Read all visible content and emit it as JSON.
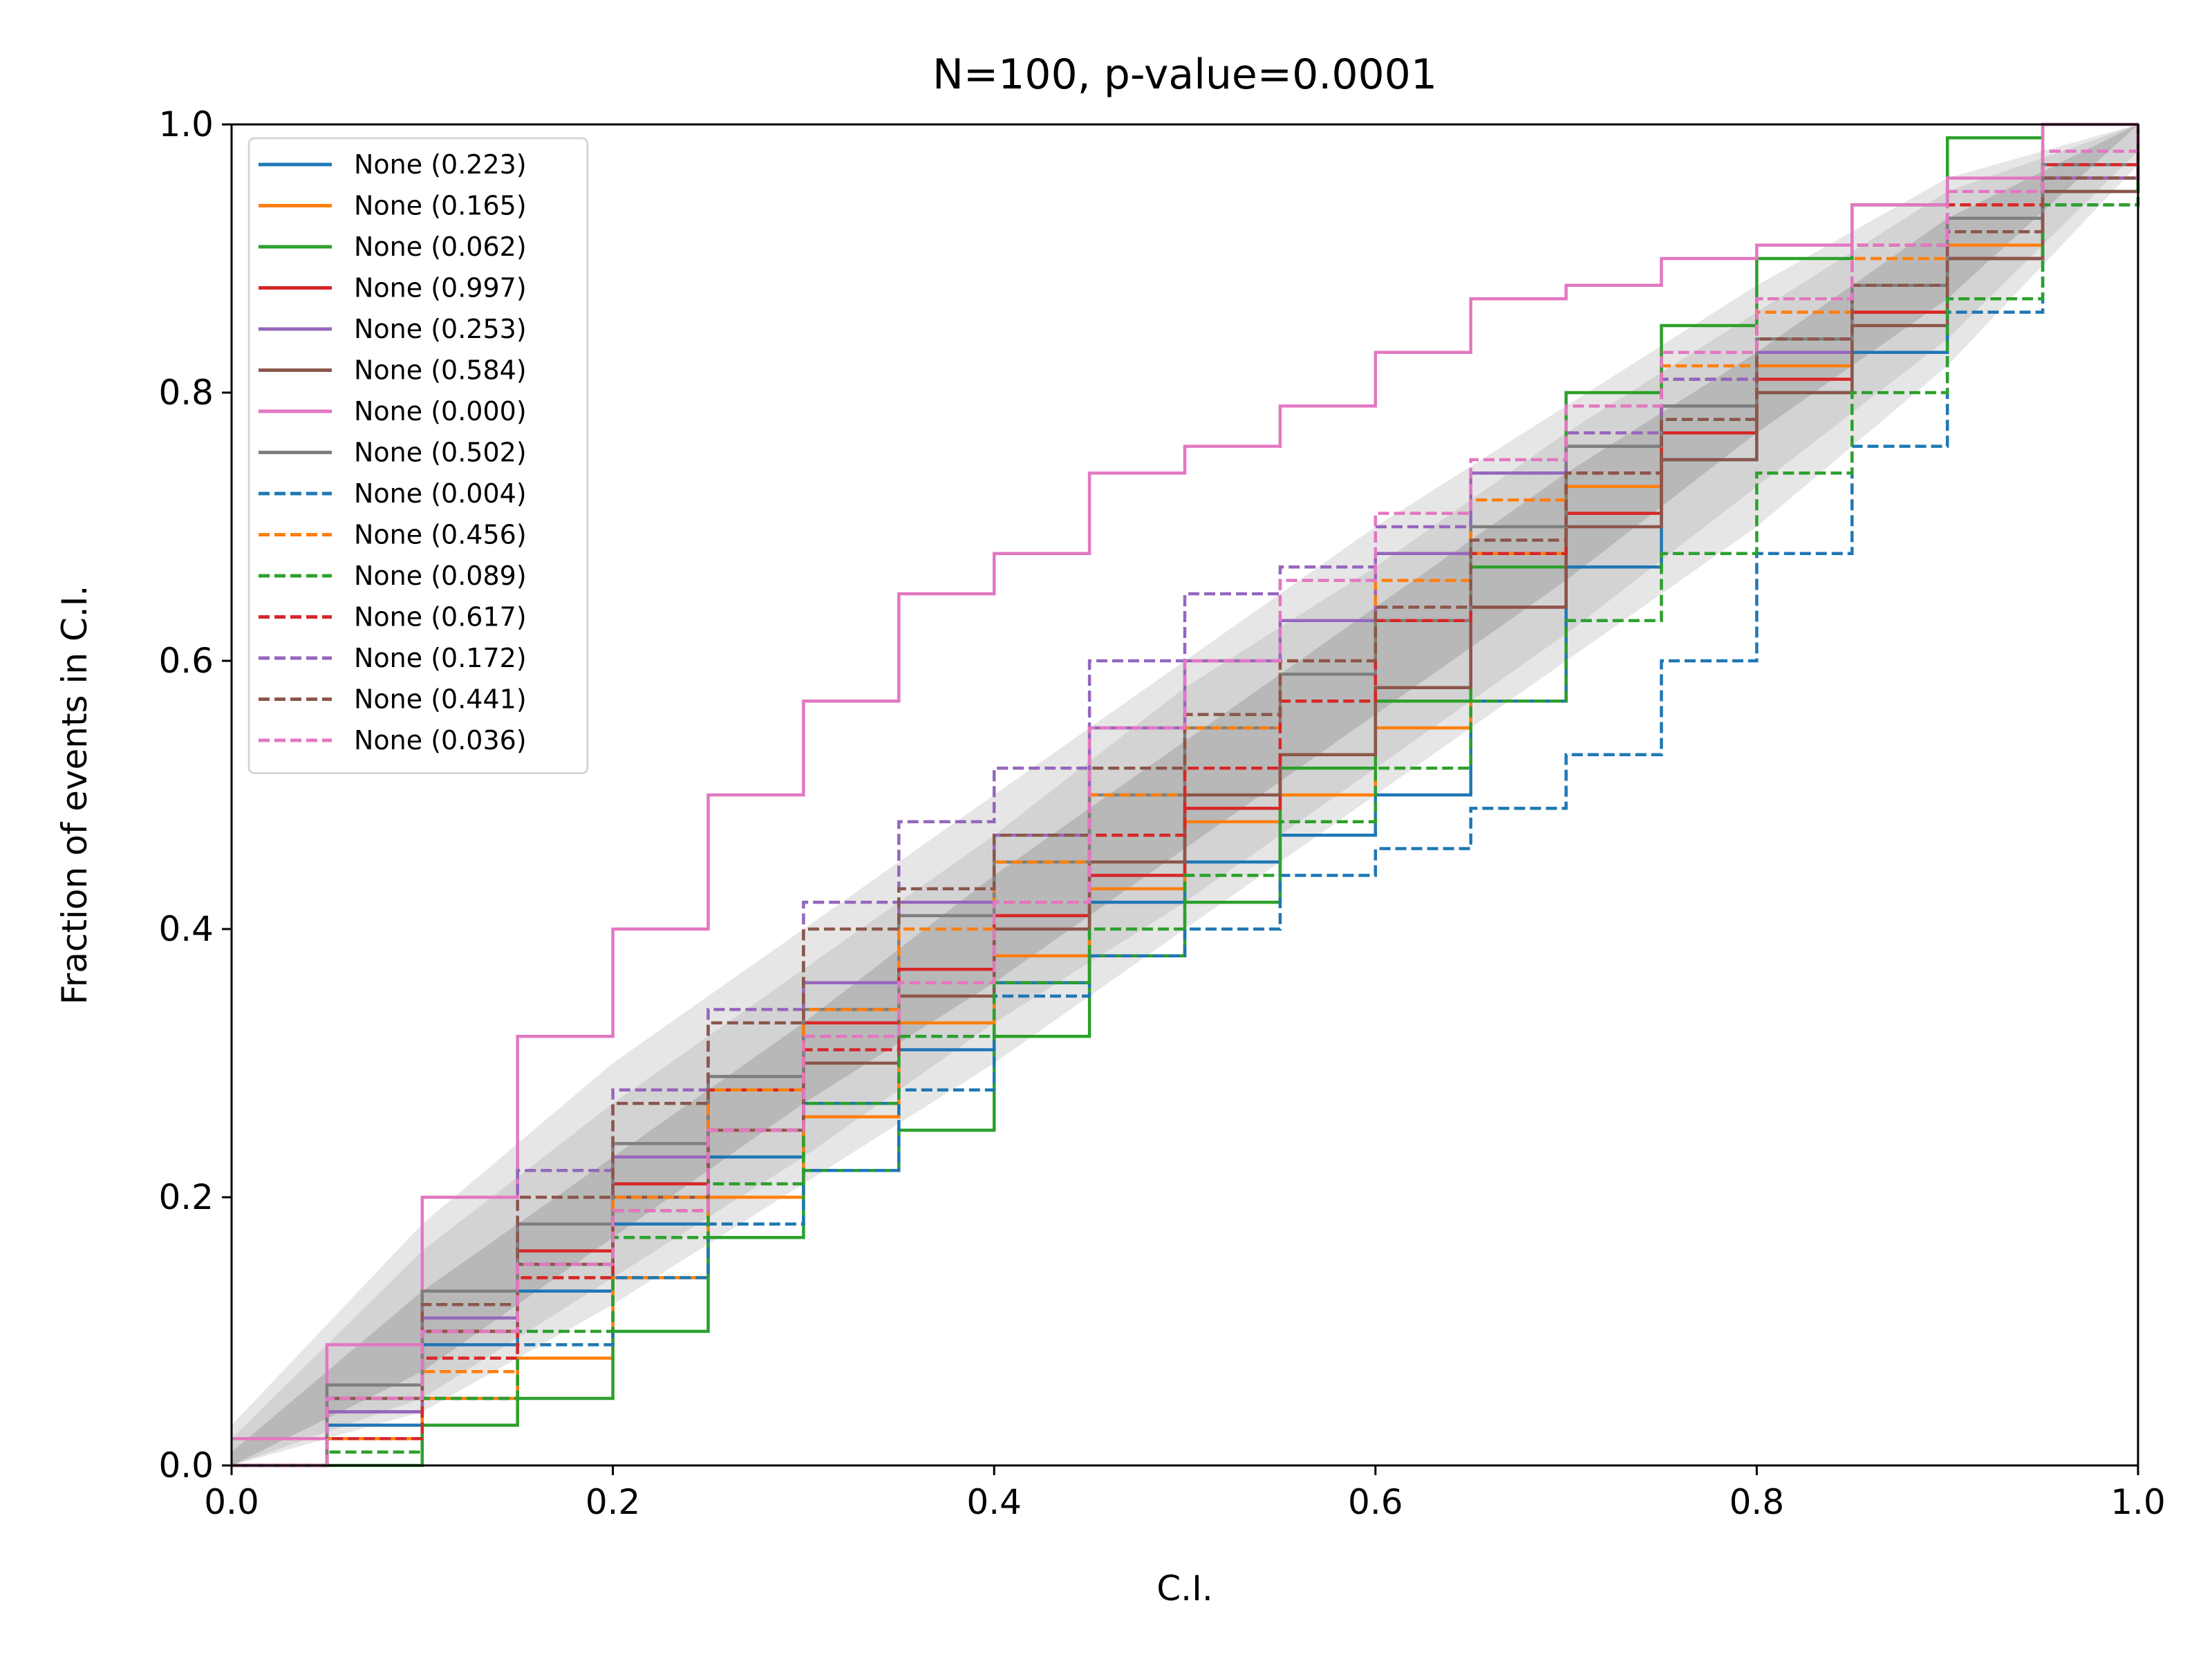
{
  "chart_data": {
    "type": "line",
    "title": "N=100, p-value=0.0001",
    "xlabel": "C.I.",
    "ylabel": "Fraction of events in C.I.",
    "xlim": [
      0.0,
      1.0
    ],
    "ylim": [
      0.0,
      1.0
    ],
    "xticks": [
      "0.0",
      "0.2",
      "0.4",
      "0.6",
      "0.8",
      "1.0"
    ],
    "yticks": [
      "0.0",
      "0.2",
      "0.4",
      "0.6",
      "0.8",
      "1.0"
    ],
    "grid": false,
    "legend_position": "upper-left",
    "bands": [
      {
        "level": "outer",
        "color": "#e6e6e6",
        "x": [
          0.0,
          0.1,
          0.2,
          0.3,
          0.4,
          0.5,
          0.6,
          0.7,
          0.8,
          0.9,
          1.0
        ],
        "lower": [
          0.0,
          0.04,
          0.12,
          0.21,
          0.3,
          0.4,
          0.5,
          0.6,
          0.7,
          0.82,
          0.97
        ],
        "upper": [
          0.03,
          0.18,
          0.3,
          0.4,
          0.5,
          0.6,
          0.7,
          0.79,
          0.88,
          0.96,
          1.0
        ]
      },
      {
        "level": "middle",
        "color": "#d3d3d3",
        "x": [
          0.0,
          0.1,
          0.2,
          0.3,
          0.4,
          0.5,
          0.6,
          0.7,
          0.8,
          0.9,
          1.0
        ],
        "lower": [
          0.0,
          0.05,
          0.14,
          0.23,
          0.33,
          0.42,
          0.52,
          0.62,
          0.73,
          0.84,
          0.98
        ],
        "upper": [
          0.02,
          0.16,
          0.27,
          0.37,
          0.47,
          0.58,
          0.67,
          0.77,
          0.86,
          0.95,
          1.0
        ]
      },
      {
        "level": "inner",
        "color": "#b8b8b8",
        "x": [
          0.0,
          0.1,
          0.2,
          0.3,
          0.4,
          0.5,
          0.6,
          0.7,
          0.8,
          0.9,
          1.0
        ],
        "lower": [
          0.0,
          0.07,
          0.17,
          0.27,
          0.36,
          0.46,
          0.56,
          0.66,
          0.77,
          0.87,
          1.0
        ],
        "upper": [
          0.01,
          0.13,
          0.23,
          0.33,
          0.44,
          0.54,
          0.64,
          0.74,
          0.83,
          0.93,
          1.0
        ]
      }
    ],
    "x": [
      0.0,
      0.05,
      0.1,
      0.15,
      0.2,
      0.25,
      0.3,
      0.35,
      0.4,
      0.45,
      0.5,
      0.55,
      0.6,
      0.65,
      0.7,
      0.75,
      0.8,
      0.85,
      0.9,
      0.95,
      1.0
    ],
    "series": [
      {
        "name": "None (0.223)",
        "color": "#1f77b4",
        "dash": false,
        "values": [
          0.0,
          0.03,
          0.09,
          0.13,
          0.18,
          0.23,
          0.27,
          0.31,
          0.36,
          0.42,
          0.45,
          0.47,
          0.5,
          0.57,
          0.67,
          0.75,
          0.8,
          0.83,
          0.9,
          0.95,
          1.0
        ]
      },
      {
        "name": "None (0.165)",
        "color": "#ff7f0e",
        "dash": false,
        "values": [
          0.0,
          0.02,
          0.05,
          0.08,
          0.14,
          0.2,
          0.26,
          0.33,
          0.38,
          0.43,
          0.48,
          0.5,
          0.55,
          0.68,
          0.73,
          0.77,
          0.82,
          0.86,
          0.91,
          0.96,
          1.0
        ]
      },
      {
        "name": "None (0.062)",
        "color": "#2ca02c",
        "dash": false,
        "values": [
          0.0,
          0.0,
          0.03,
          0.05,
          0.1,
          0.17,
          0.22,
          0.25,
          0.32,
          0.38,
          0.42,
          0.52,
          0.57,
          0.67,
          0.8,
          0.85,
          0.9,
          0.94,
          0.99,
          1.0,
          1.0
        ]
      },
      {
        "name": "None (0.997)",
        "color": "#d62728",
        "dash": false,
        "values": [
          0.0,
          0.04,
          0.1,
          0.16,
          0.21,
          0.28,
          0.33,
          0.37,
          0.41,
          0.44,
          0.49,
          0.53,
          0.58,
          0.64,
          0.71,
          0.77,
          0.81,
          0.86,
          0.9,
          0.96,
          1.0
        ]
      },
      {
        "name": "None (0.253)",
        "color": "#9467bd",
        "dash": false,
        "values": [
          0.0,
          0.04,
          0.11,
          0.18,
          0.23,
          0.29,
          0.36,
          0.42,
          0.47,
          0.55,
          0.6,
          0.63,
          0.68,
          0.74,
          0.76,
          0.79,
          0.83,
          0.88,
          0.93,
          0.96,
          1.0
        ]
      },
      {
        "name": "None (0.584)",
        "color": "#8c564b",
        "dash": false,
        "values": [
          0.0,
          0.05,
          0.1,
          0.15,
          0.2,
          0.25,
          0.3,
          0.35,
          0.4,
          0.45,
          0.5,
          0.53,
          0.58,
          0.64,
          0.7,
          0.75,
          0.8,
          0.85,
          0.9,
          0.95,
          1.0
        ]
      },
      {
        "name": "None (0.000)",
        "color": "#e377c2",
        "dash": false,
        "values": [
          0.02,
          0.09,
          0.2,
          0.32,
          0.4,
          0.5,
          0.57,
          0.65,
          0.68,
          0.74,
          0.76,
          0.79,
          0.83,
          0.87,
          0.88,
          0.9,
          0.91,
          0.94,
          0.96,
          1.0,
          1.0
        ]
      },
      {
        "name": "None (0.502)",
        "color": "#7f7f7f",
        "dash": false,
        "values": [
          0.0,
          0.06,
          0.13,
          0.18,
          0.24,
          0.29,
          0.34,
          0.41,
          0.45,
          0.5,
          0.55,
          0.59,
          0.63,
          0.7,
          0.76,
          0.79,
          0.84,
          0.88,
          0.93,
          0.97,
          1.0
        ]
      },
      {
        "name": "None (0.004)",
        "color": "#1f77b4",
        "dash": true,
        "values": [
          0.0,
          0.02,
          0.05,
          0.09,
          0.14,
          0.18,
          0.22,
          0.28,
          0.35,
          0.38,
          0.4,
          0.44,
          0.46,
          0.49,
          0.53,
          0.6,
          0.68,
          0.76,
          0.86,
          0.94,
          1.0
        ]
      },
      {
        "name": "None (0.456)",
        "color": "#ff7f0e",
        "dash": true,
        "values": [
          0.0,
          0.02,
          0.07,
          0.14,
          0.2,
          0.28,
          0.34,
          0.4,
          0.45,
          0.5,
          0.55,
          0.6,
          0.66,
          0.72,
          0.77,
          0.82,
          0.86,
          0.9,
          0.94,
          0.98,
          1.0
        ]
      },
      {
        "name": "None (0.089)",
        "color": "#2ca02c",
        "dash": true,
        "values": [
          0.0,
          0.01,
          0.05,
          0.1,
          0.17,
          0.21,
          0.27,
          0.32,
          0.36,
          0.4,
          0.44,
          0.48,
          0.52,
          0.57,
          0.63,
          0.68,
          0.74,
          0.8,
          0.87,
          0.94,
          0.98
        ]
      },
      {
        "name": "None (0.617)",
        "color": "#d62728",
        "dash": true,
        "values": [
          0.0,
          0.02,
          0.08,
          0.14,
          0.19,
          0.25,
          0.31,
          0.37,
          0.42,
          0.47,
          0.52,
          0.57,
          0.63,
          0.68,
          0.74,
          0.81,
          0.87,
          0.91,
          0.94,
          0.97,
          1.0
        ]
      },
      {
        "name": "None (0.172)",
        "color": "#9467bd",
        "dash": true,
        "values": [
          0.0,
          0.05,
          0.12,
          0.22,
          0.28,
          0.34,
          0.42,
          0.48,
          0.52,
          0.6,
          0.65,
          0.67,
          0.7,
          0.74,
          0.77,
          0.81,
          0.84,
          0.88,
          0.92,
          0.96,
          1.0
        ]
      },
      {
        "name": "None (0.441)",
        "color": "#8c564b",
        "dash": true,
        "values": [
          0.0,
          0.05,
          0.12,
          0.2,
          0.27,
          0.33,
          0.4,
          0.43,
          0.47,
          0.52,
          0.56,
          0.6,
          0.64,
          0.69,
          0.74,
          0.78,
          0.84,
          0.88,
          0.92,
          0.96,
          1.0
        ]
      },
      {
        "name": "None (0.036)",
        "color": "#e377c2",
        "dash": true,
        "values": [
          0.0,
          0.05,
          0.1,
          0.15,
          0.19,
          0.25,
          0.32,
          0.36,
          0.42,
          0.55,
          0.6,
          0.66,
          0.71,
          0.75,
          0.79,
          0.83,
          0.87,
          0.91,
          0.95,
          0.98,
          1.0
        ]
      }
    ]
  }
}
